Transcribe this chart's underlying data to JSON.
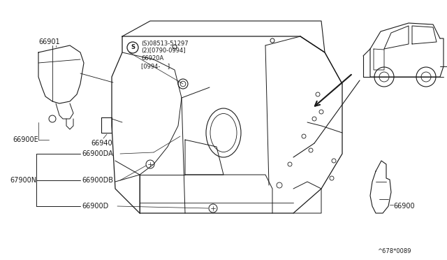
{
  "bg_color": "#ffffff",
  "line_color": "#1a1a1a",
  "text_color": "#1a1a1a",
  "fig_width": 6.4,
  "fig_height": 3.72,
  "dpi": 100,
  "screw_text": [
    "(S)08513-51297",
    "(2)[0790-0994]",
    "66920A",
    "[0994-    ]"
  ],
  "diagram_code": "^678*0089"
}
